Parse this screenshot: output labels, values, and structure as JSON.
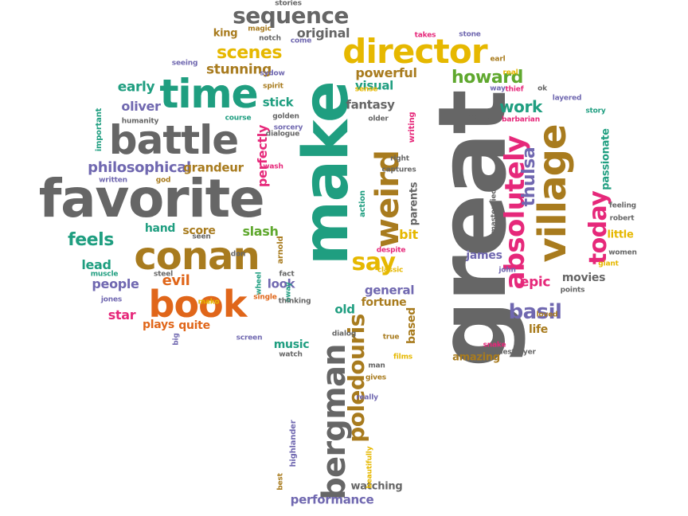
{
  "palette": {
    "gray": "#666666",
    "teal": "#1f9e80",
    "gold": "#e6b800",
    "brown": "#a87b1e",
    "orange": "#e0661a",
    "magenta": "#e6287a",
    "purple": "#7068b0",
    "green": "#5fa82e"
  },
  "words": [
    {
      "text": "great",
      "color": "gray",
      "rot": true
    },
    {
      "text": "make",
      "color": "teal",
      "rot": true
    },
    {
      "text": "favorite",
      "color": "gray",
      "rot": false
    },
    {
      "text": "battle",
      "color": "gray",
      "rot": false
    },
    {
      "text": "conan",
      "color": "brown",
      "rot": false
    },
    {
      "text": "book",
      "color": "orange",
      "rot": false
    },
    {
      "text": "time",
      "color": "teal",
      "rot": false
    },
    {
      "text": "village",
      "color": "brown",
      "rot": true
    },
    {
      "text": "director",
      "color": "gold",
      "rot": false
    },
    {
      "text": "weird",
      "color": "brown",
      "rot": true
    },
    {
      "text": "absolutely",
      "color": "magenta",
      "rot": true
    },
    {
      "text": "bergman",
      "color": "gray",
      "rot": true
    },
    {
      "text": "poledouris",
      "color": "brown",
      "rot": true
    },
    {
      "text": "sequence",
      "color": "gray",
      "rot": false
    },
    {
      "text": "say",
      "color": "gold",
      "rot": false
    },
    {
      "text": "scenes",
      "color": "gold",
      "rot": false
    },
    {
      "text": "howard",
      "color": "green",
      "rot": false
    },
    {
      "text": "basil",
      "color": "purple",
      "rot": false
    },
    {
      "text": "today",
      "color": "magenta",
      "rot": true
    },
    {
      "text": "thulsa",
      "color": "purple",
      "rot": true
    },
    {
      "text": "feels",
      "color": "teal",
      "rot": false
    },
    {
      "text": "philosophical",
      "color": "purple",
      "rot": false
    },
    {
      "text": "work",
      "color": "teal",
      "rot": false
    },
    {
      "text": "stunning",
      "color": "brown",
      "rot": false
    },
    {
      "text": "passionate",
      "color": "teal",
      "rot": true
    },
    {
      "text": "perfectly",
      "color": "magenta",
      "rot": true
    },
    {
      "text": "time",
      "color": "teal",
      "rot": false
    },
    {
      "text": "score",
      "color": "brown",
      "rot": false
    },
    {
      "text": "hand",
      "color": "teal",
      "rot": false
    },
    {
      "text": "slash",
      "color": "green",
      "rot": false
    },
    {
      "text": "fantasy",
      "color": "gray",
      "rot": false
    },
    {
      "text": "powerful",
      "color": "brown",
      "rot": false
    },
    {
      "text": "visual",
      "color": "teal",
      "rot": false
    },
    {
      "text": "stick",
      "color": "teal",
      "rot": false
    },
    {
      "text": "early",
      "color": "teal",
      "rot": false
    },
    {
      "text": "oliver",
      "color": "purple",
      "rot": false
    },
    {
      "text": "grandeur",
      "color": "brown",
      "rot": false
    },
    {
      "text": "original",
      "color": "gray",
      "rot": false
    },
    {
      "text": "king",
      "color": "brown",
      "rot": false
    },
    {
      "text": "lead",
      "color": "teal",
      "rot": false
    },
    {
      "text": "people",
      "color": "purple",
      "rot": false
    },
    {
      "text": "evil",
      "color": "orange",
      "rot": false
    },
    {
      "text": "star",
      "color": "magenta",
      "rot": false
    },
    {
      "text": "plays",
      "color": "orange",
      "rot": false
    },
    {
      "text": "quite",
      "color": "orange",
      "rot": false
    },
    {
      "text": "look",
      "color": "purple",
      "rot": false
    },
    {
      "text": "general",
      "color": "purple",
      "rot": false
    },
    {
      "text": "fortune",
      "color": "brown",
      "rot": false
    },
    {
      "text": "old",
      "color": "teal",
      "rot": false
    },
    {
      "text": "bit",
      "color": "gold",
      "rot": false
    },
    {
      "text": "epic",
      "color": "magenta",
      "rot": false
    },
    {
      "text": "movies",
      "color": "gray",
      "rot": false
    },
    {
      "text": "life",
      "color": "brown",
      "rot": false
    },
    {
      "text": "little",
      "color": "gold",
      "rot": false
    },
    {
      "text": "james",
      "color": "purple",
      "rot": false
    },
    {
      "text": "music",
      "color": "teal",
      "rot": false
    },
    {
      "text": "amazing",
      "color": "brown",
      "rot": false
    },
    {
      "text": "based",
      "color": "brown",
      "rot": true
    },
    {
      "text": "parents",
      "color": "gray",
      "rot": true
    },
    {
      "text": "watching",
      "color": "gray",
      "rot": false
    },
    {
      "text": "performance",
      "color": "purple",
      "rot": false
    },
    {
      "text": "highlander",
      "color": "purple",
      "rot": true
    },
    {
      "text": "stories",
      "color": "gray",
      "rot": false
    },
    {
      "text": "magic",
      "color": "brown",
      "rot": false
    },
    {
      "text": "notch",
      "color": "gray",
      "rot": false
    },
    {
      "text": "come",
      "color": "purple",
      "rot": false
    },
    {
      "text": "takes",
      "color": "magenta",
      "rot": false
    },
    {
      "text": "stone",
      "color": "purple",
      "rot": false
    },
    {
      "text": "earl",
      "color": "brown",
      "rot": false
    },
    {
      "text": "seeing",
      "color": "purple",
      "rot": false
    },
    {
      "text": "sydow",
      "color": "purple",
      "rot": false
    },
    {
      "text": "spirit",
      "color": "brown",
      "rot": false
    },
    {
      "text": "sense",
      "color": "gold",
      "rot": false
    },
    {
      "text": "real",
      "color": "gold",
      "rot": false
    },
    {
      "text": "way",
      "color": "purple",
      "rot": false
    },
    {
      "text": "thief",
      "color": "magenta",
      "rot": false
    },
    {
      "text": "ok",
      "color": "gray",
      "rot": false
    },
    {
      "text": "layered",
      "color": "purple",
      "rot": false
    },
    {
      "text": "story",
      "color": "teal",
      "rot": false
    },
    {
      "text": "humanity",
      "color": "gray",
      "rot": false
    },
    {
      "text": "course",
      "color": "teal",
      "rot": false
    },
    {
      "text": "golden",
      "color": "gray",
      "rot": false
    },
    {
      "text": "sorcery",
      "color": "purple",
      "rot": false
    },
    {
      "text": "older",
      "color": "gray",
      "rot": false
    },
    {
      "text": "writing",
      "color": "magenta",
      "rot": true
    },
    {
      "text": "picture",
      "color": "gray",
      "rot": false
    },
    {
      "text": "barbarian",
      "color": "magenta",
      "rot": false
    },
    {
      "text": "important",
      "color": "teal",
      "rot": true
    },
    {
      "text": "dialogue",
      "color": "gray",
      "rot": false
    },
    {
      "text": "wash",
      "color": "magenta",
      "rot": false
    },
    {
      "text": "right",
      "color": "gray",
      "rot": false
    },
    {
      "text": "captures",
      "color": "gray",
      "rot": false
    },
    {
      "text": "written",
      "color": "purple",
      "rot": false
    },
    {
      "text": "god",
      "color": "brown",
      "rot": false
    },
    {
      "text": "action",
      "color": "teal",
      "rot": true
    },
    {
      "text": "masterpiece",
      "color": "gray",
      "rot": true
    },
    {
      "text": "feeling",
      "color": "gray",
      "rot": false
    },
    {
      "text": "robert",
      "color": "gray",
      "rot": false
    },
    {
      "text": "seen",
      "color": "gray",
      "rot": false
    },
    {
      "text": "don",
      "color": "gray",
      "rot": false
    },
    {
      "text": "arnold",
      "color": "brown",
      "rot": true
    },
    {
      "text": "despite",
      "color": "magenta",
      "rot": false
    },
    {
      "text": "classic",
      "color": "gold",
      "rot": false
    },
    {
      "text": "unique",
      "color": "gray",
      "rot": false
    },
    {
      "text": "women",
      "color": "gray",
      "rot": false
    },
    {
      "text": "giant",
      "color": "gold",
      "rot": false
    },
    {
      "text": "john",
      "color": "purple",
      "rot": false
    },
    {
      "text": "muscle",
      "color": "teal",
      "rot": false
    },
    {
      "text": "steel",
      "color": "gray",
      "rot": false
    },
    {
      "text": "away",
      "color": "teal",
      "rot": true
    },
    {
      "text": "fact",
      "color": "gray",
      "rot": false
    },
    {
      "text": "wheel",
      "color": "teal",
      "rot": true
    },
    {
      "text": "points",
      "color": "gray",
      "rot": false
    },
    {
      "text": "jones",
      "color": "purple",
      "rot": false
    },
    {
      "text": "single",
      "color": "orange",
      "rot": false
    },
    {
      "text": "thinking",
      "color": "gray",
      "rot": false
    },
    {
      "text": "mako",
      "color": "gold",
      "rot": false
    },
    {
      "text": "dialog",
      "color": "gray",
      "rot": false
    },
    {
      "text": "true",
      "color": "brown",
      "rot": false
    },
    {
      "text": "loved",
      "color": "brown",
      "rot": false
    },
    {
      "text": "big",
      "color": "purple",
      "rot": true
    },
    {
      "text": "screen",
      "color": "purple",
      "rot": false
    },
    {
      "text": "snake",
      "color": "magenta",
      "rot": false
    },
    {
      "text": "destroyer",
      "color": "gray",
      "rot": false
    },
    {
      "text": "watch",
      "color": "gray",
      "rot": false
    },
    {
      "text": "films",
      "color": "gold",
      "rot": false
    },
    {
      "text": "man",
      "color": "gray",
      "rot": false
    },
    {
      "text": "gives",
      "color": "brown",
      "rot": false
    },
    {
      "text": "really",
      "color": "purple",
      "rot": false
    },
    {
      "text": "beautifully",
      "color": "gold",
      "rot": true
    },
    {
      "text": "best",
      "color": "brown",
      "rot": true
    },
    {
      "text": "von",
      "color": "brown",
      "rot": false
    }
  ]
}
